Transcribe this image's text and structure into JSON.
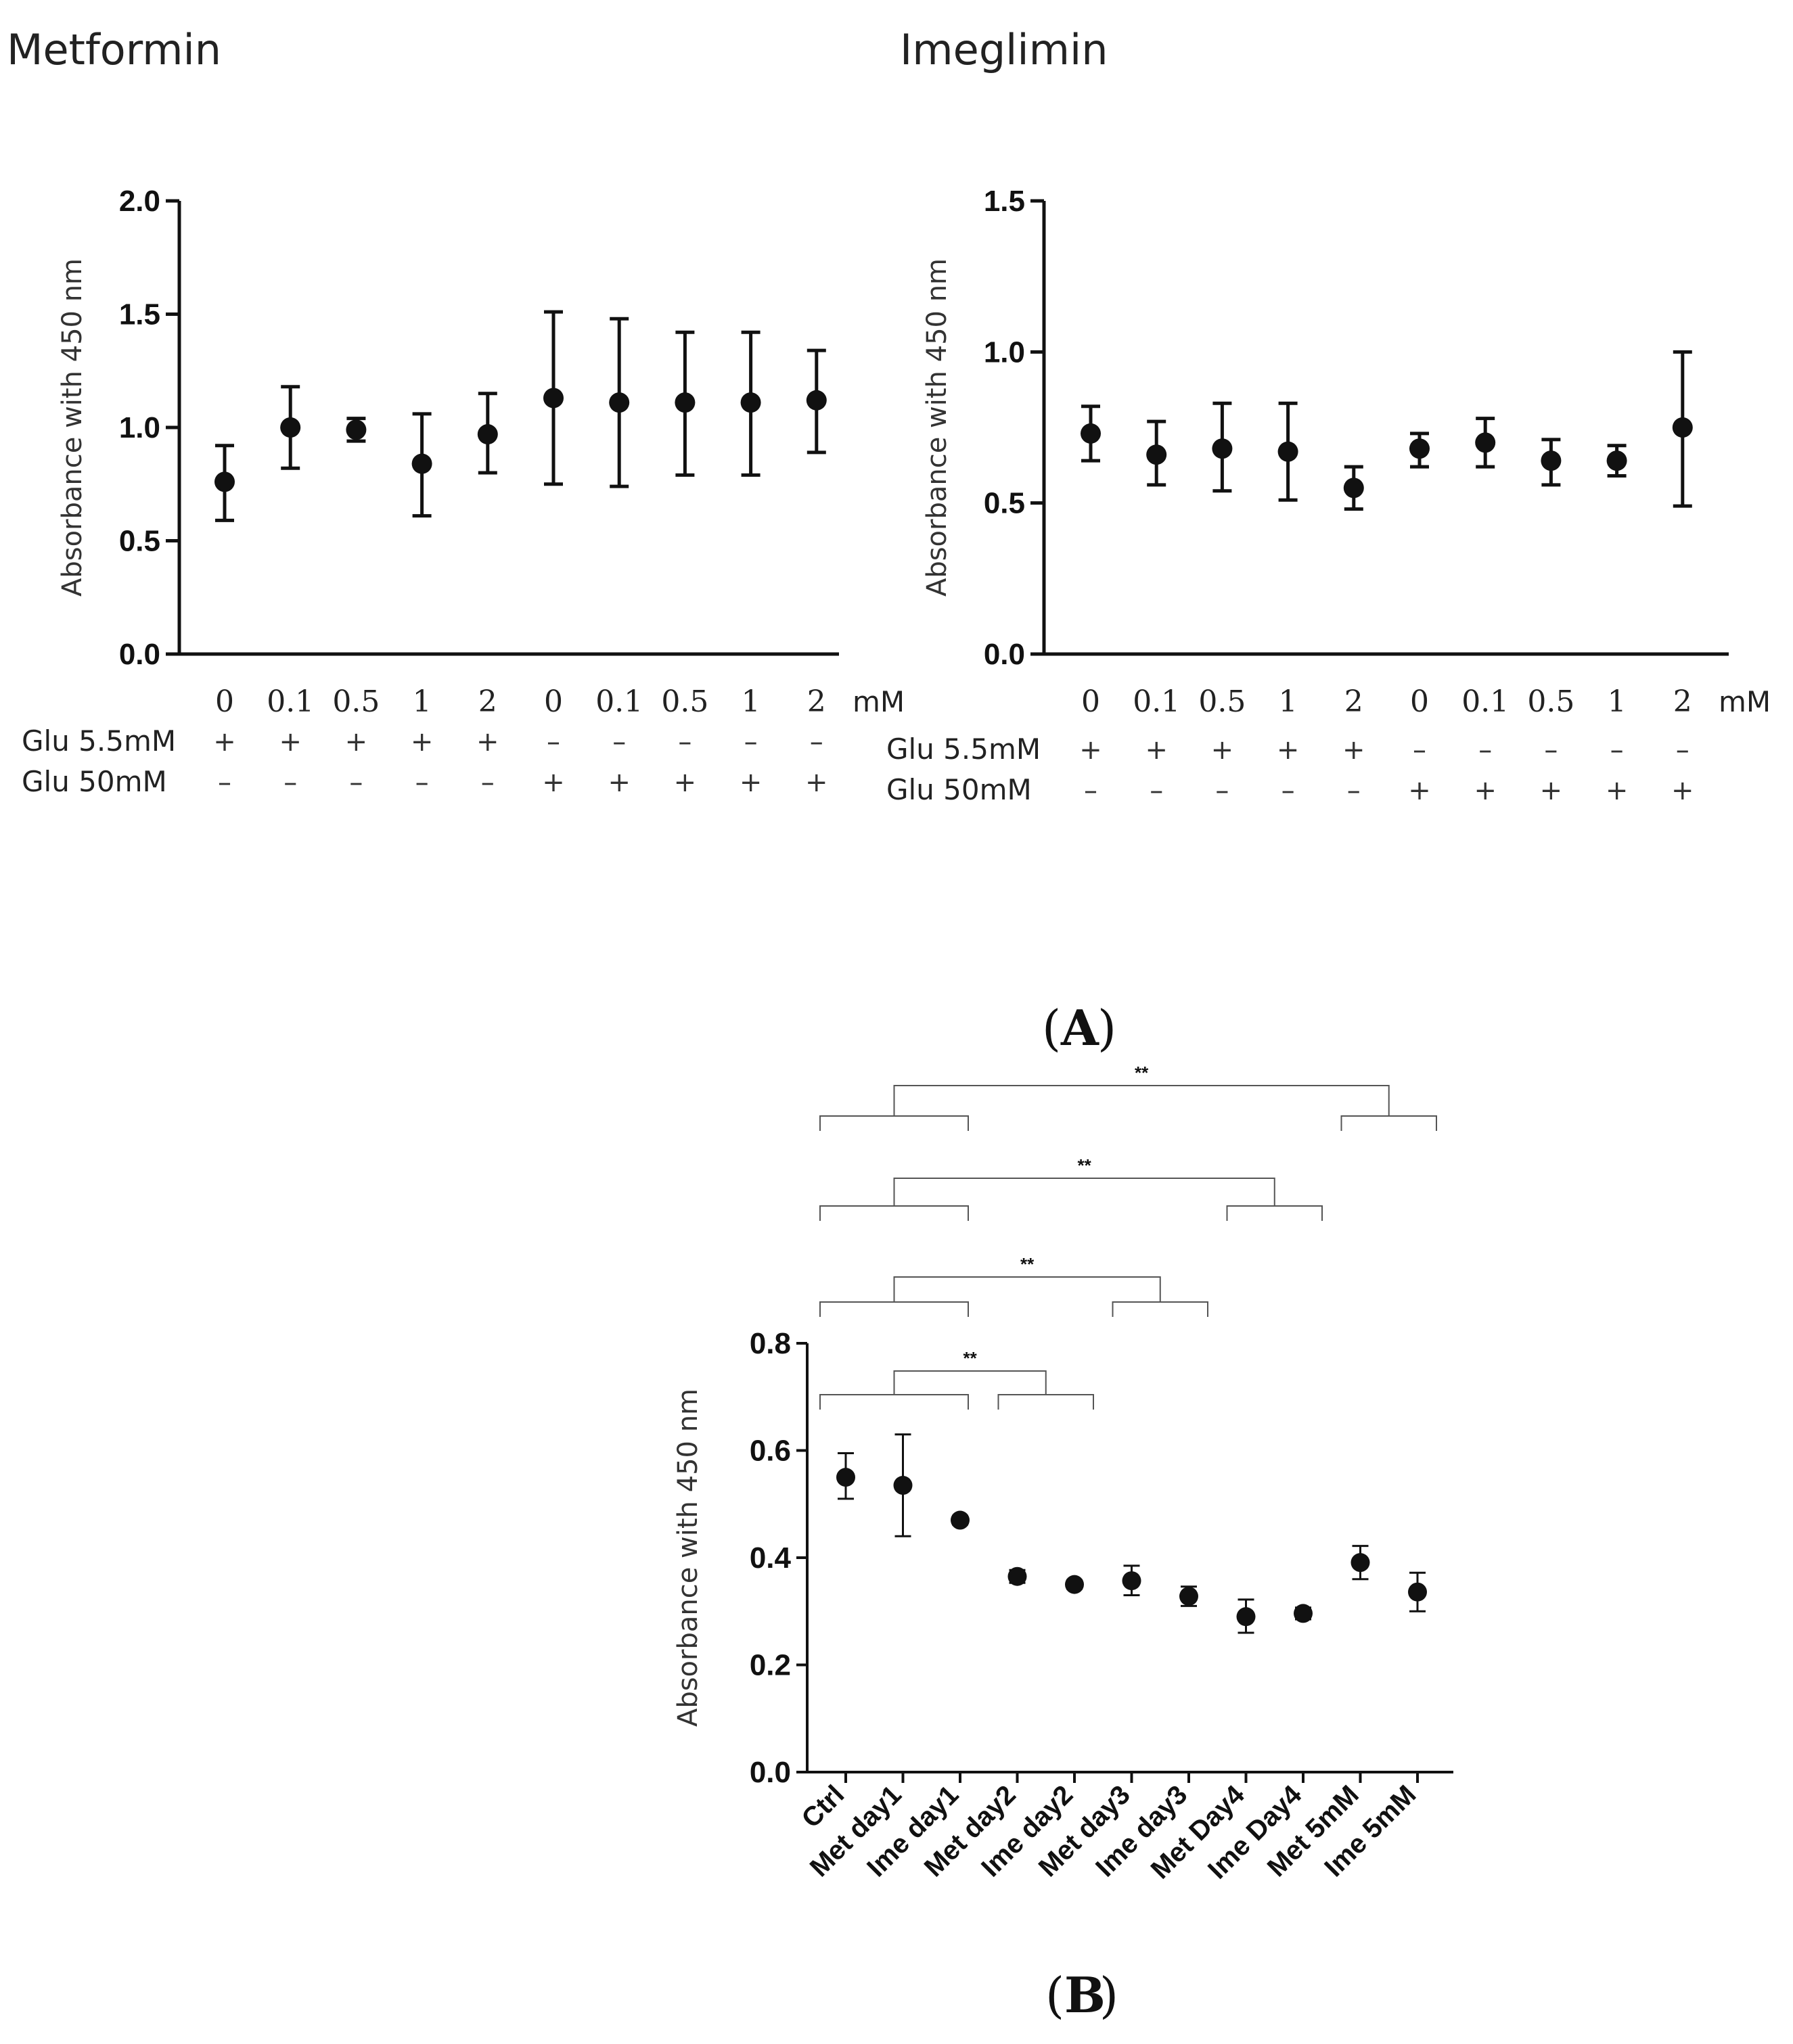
{
  "figure": {
    "panel_a_label": "A",
    "panel_b_label": "B"
  },
  "chart_data": [
    {
      "id": "metformin",
      "type": "scatter",
      "title": "Metformin",
      "xlabel": "",
      "ylabel": "Absorbance with 450 nm",
      "ylim": [
        0,
        2.0
      ],
      "yticks": [
        "0.0",
        "0.5",
        "1.0",
        "1.5",
        "2.0"
      ],
      "yticks_values": [
        0,
        0.5,
        1.0,
        1.5,
        2.0
      ],
      "categories": [
        "0",
        "0.1",
        "0.5",
        "1",
        "2",
        "0",
        "0.1",
        "0.5",
        "1",
        "2"
      ],
      "unit_label": "mM",
      "values": [
        0.76,
        1.0,
        0.99,
        0.84,
        0.97,
        1.13,
        1.11,
        1.11,
        1.11,
        1.12
      ],
      "err_low": [
        0.59,
        0.82,
        0.94,
        0.61,
        0.8,
        0.75,
        0.74,
        0.79,
        0.79,
        0.89
      ],
      "err_high": [
        0.92,
        1.18,
        1.04,
        1.06,
        1.15,
        1.51,
        1.48,
        1.42,
        1.42,
        1.34
      ],
      "rows": [
        {
          "label": "Glu 5.5mM",
          "signs": [
            "+",
            "+",
            "+",
            "+",
            "+",
            "–",
            "–",
            "–",
            "–",
            "–"
          ]
        },
        {
          "label": "Glu 50mM",
          "signs": [
            "–",
            "–",
            "–",
            "–",
            "–",
            "+",
            "+",
            "+",
            "+",
            "+"
          ]
        }
      ]
    },
    {
      "id": "imeglimin",
      "type": "scatter",
      "title": "Imeglimin",
      "xlabel": "",
      "ylabel": "Absorbance with 450 nm",
      "ylim": [
        0,
        1.5
      ],
      "yticks": [
        "0.0",
        "0.5",
        "1.0",
        "1.5"
      ],
      "yticks_values": [
        0,
        0.5,
        1.0,
        1.5
      ],
      "categories": [
        "0",
        "0.1",
        "0.5",
        "1",
        "2",
        "0",
        "0.1",
        "0.5",
        "1",
        "2"
      ],
      "unit_label": "mM",
      "values": [
        0.73,
        0.66,
        0.68,
        0.67,
        0.55,
        0.68,
        0.7,
        0.64,
        0.64,
        0.75
      ],
      "err_low": [
        0.64,
        0.56,
        0.54,
        0.51,
        0.48,
        0.62,
        0.62,
        0.56,
        0.59,
        0.49
      ],
      "err_high": [
        0.82,
        0.77,
        0.83,
        0.83,
        0.62,
        0.73,
        0.78,
        0.71,
        0.69,
        1.0
      ],
      "rows": [
        {
          "label": "Glu 5.5mM",
          "signs": [
            "+",
            "+",
            "+",
            "+",
            "+",
            "–",
            "–",
            "–",
            "–",
            "–"
          ]
        },
        {
          "label": "Glu 50mM",
          "signs": [
            "–",
            "–",
            "–",
            "–",
            "–",
            "+",
            "+",
            "+",
            "+",
            "+"
          ]
        }
      ]
    },
    {
      "id": "timecourse",
      "type": "scatter",
      "title": "",
      "xlabel": "",
      "ylabel": "Absorbance with 450 nm",
      "ylim": [
        0,
        0.8
      ],
      "yticks": [
        "0.0",
        "0.2",
        "0.4",
        "0.6",
        "0.8"
      ],
      "yticks_values": [
        0,
        0.2,
        0.4,
        0.6,
        0.8
      ],
      "categories": [
        "Ctrl",
        "Met day1",
        "Ime day1",
        "Met day2",
        "Ime day2",
        "Met day3",
        "Ime day3",
        "Met Day4",
        "Ime Day4",
        "Met 5mM",
        "Ime 5mM"
      ],
      "values": [
        0.55,
        0.535,
        0.47,
        0.365,
        0.35,
        0.357,
        0.328,
        0.29,
        0.296,
        0.391,
        0.336
      ],
      "err_low": [
        0.51,
        0.44,
        0.462,
        0.353,
        0.342,
        0.33,
        0.31,
        0.26,
        0.285,
        0.36,
        0.3
      ],
      "err_high": [
        0.595,
        0.63,
        0.478,
        0.377,
        0.358,
        0.385,
        0.346,
        0.322,
        0.307,
        0.422,
        0.372
      ],
      "comparisons": [
        {
          "label": "**",
          "group_a": [
            0,
            2
          ],
          "group_b": [
            3,
            4
          ]
        },
        {
          "label": "**",
          "group_a": [
            0,
            2
          ],
          "group_b": [
            5,
            6
          ]
        },
        {
          "label": "**",
          "group_a": [
            0,
            2
          ],
          "group_b": [
            7,
            8
          ]
        },
        {
          "label": "**",
          "group_a": [
            0,
            2
          ],
          "group_b": [
            9,
            10
          ]
        }
      ]
    }
  ]
}
